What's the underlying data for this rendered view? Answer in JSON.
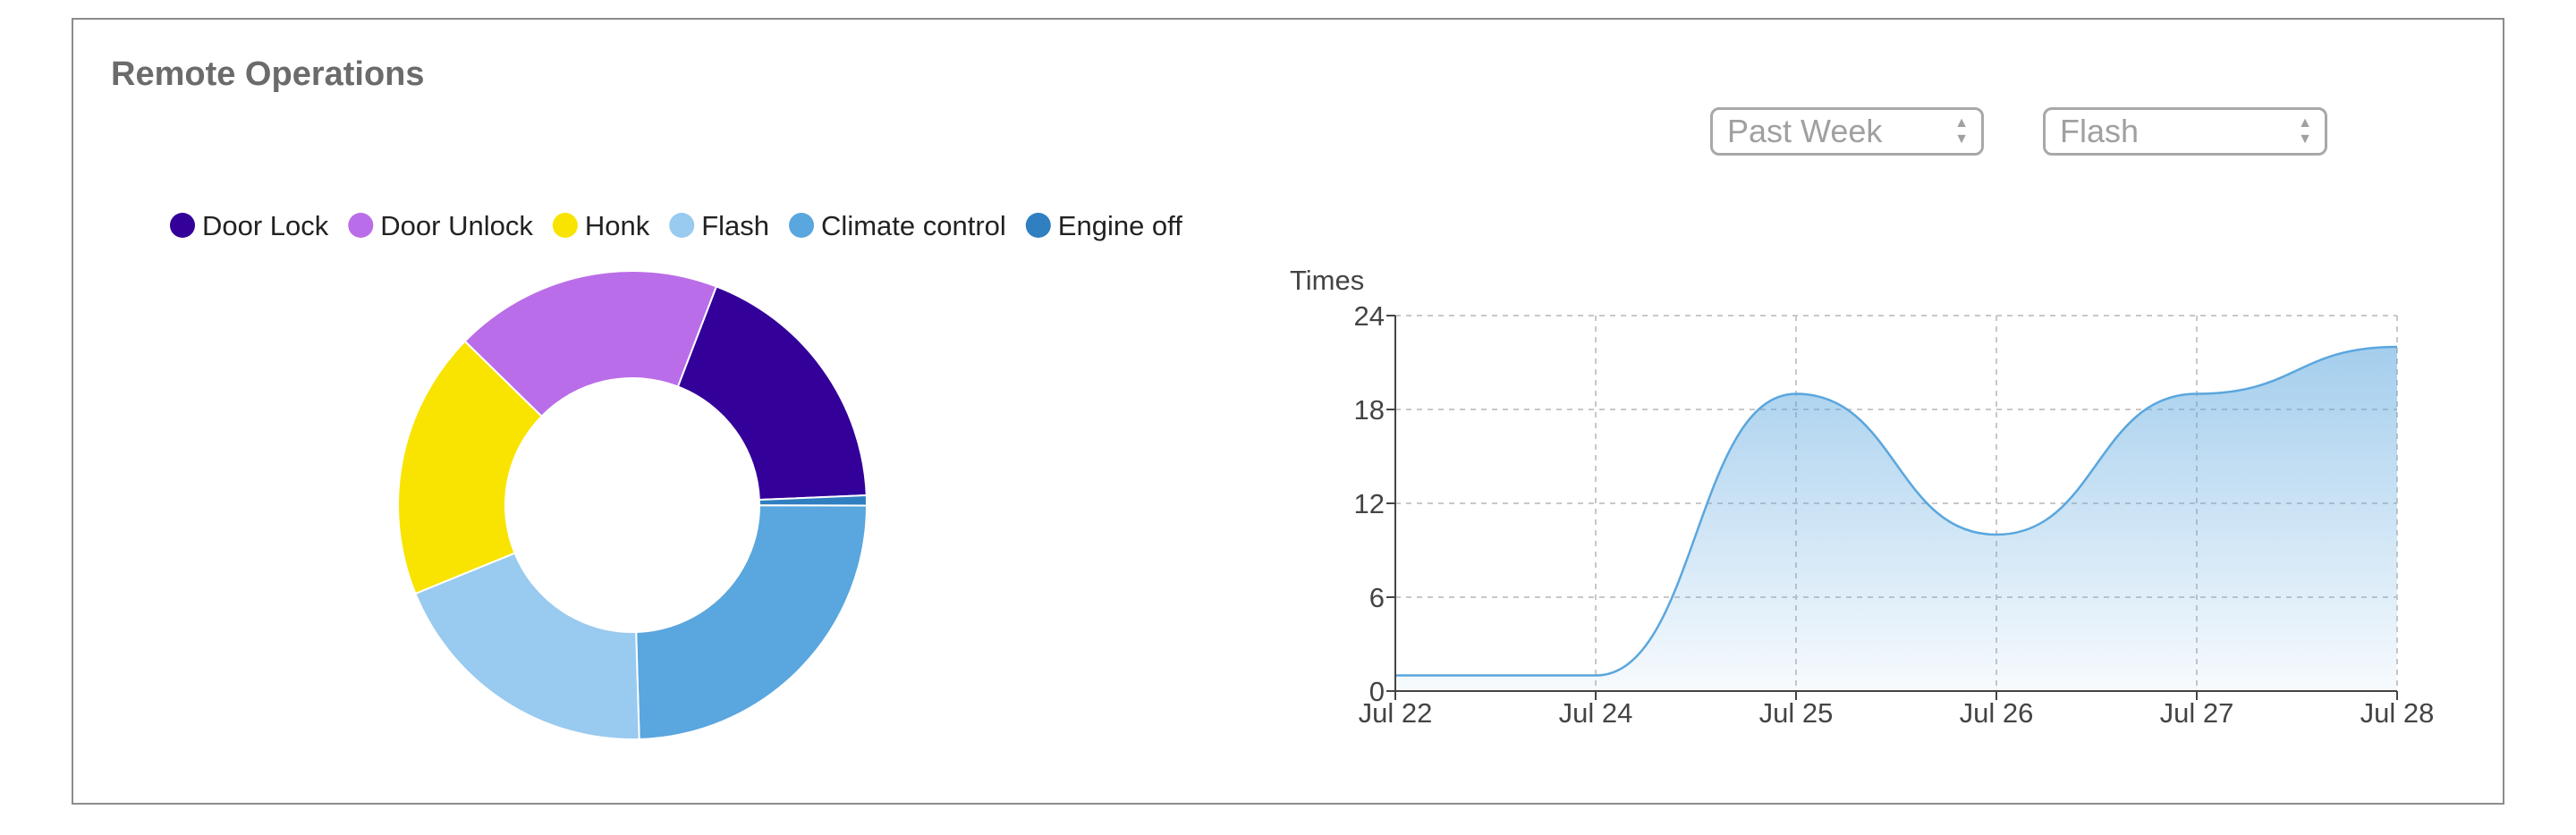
{
  "panel": {
    "title": "Remote Operations"
  },
  "filters": {
    "range": {
      "value": "Past Week"
    },
    "metric": {
      "value": "Flash"
    }
  },
  "chart_data": [
    {
      "type": "pie",
      "variant": "donut",
      "legend_position": "top",
      "slices": [
        {
          "label": "Door Lock",
          "value": 18.5,
          "color": "#330099"
        },
        {
          "label": "Engine off",
          "value": 0.7,
          "color": "#2f7fc1"
        },
        {
          "label": "Climate control",
          "value": 24.5,
          "color": "#5aa6de"
        },
        {
          "label": "Flash",
          "value": 19.3,
          "color": "#99caf0"
        },
        {
          "label": "Honk",
          "value": 18.5,
          "color": "#f8e400"
        },
        {
          "label": "Door Unlock",
          "value": 18.5,
          "color": "#ba6de9"
        }
      ],
      "legend_order": [
        "Door Lock",
        "Door Unlock",
        "Honk",
        "Flash",
        "Climate control",
        "Engine off"
      ]
    },
    {
      "type": "area",
      "ylabel": "Times",
      "ylim": [
        0,
        24
      ],
      "y_ticks": [
        "0",
        "6",
        "12",
        "18",
        "24"
      ],
      "x_ticks": [
        "Jul 22",
        "Jul 24",
        "Jul 25",
        "Jul 26",
        "Jul 27",
        "Jul 28"
      ],
      "grid": true,
      "series": [
        {
          "x": [
            "Jul 22",
            "Jul 24",
            "Jul 25",
            "Jul 26",
            "Jul 27",
            "Jul 28"
          ],
          "values": [
            1,
            1,
            19,
            10,
            19,
            22
          ],
          "color": "#5aa6de"
        }
      ]
    }
  ]
}
